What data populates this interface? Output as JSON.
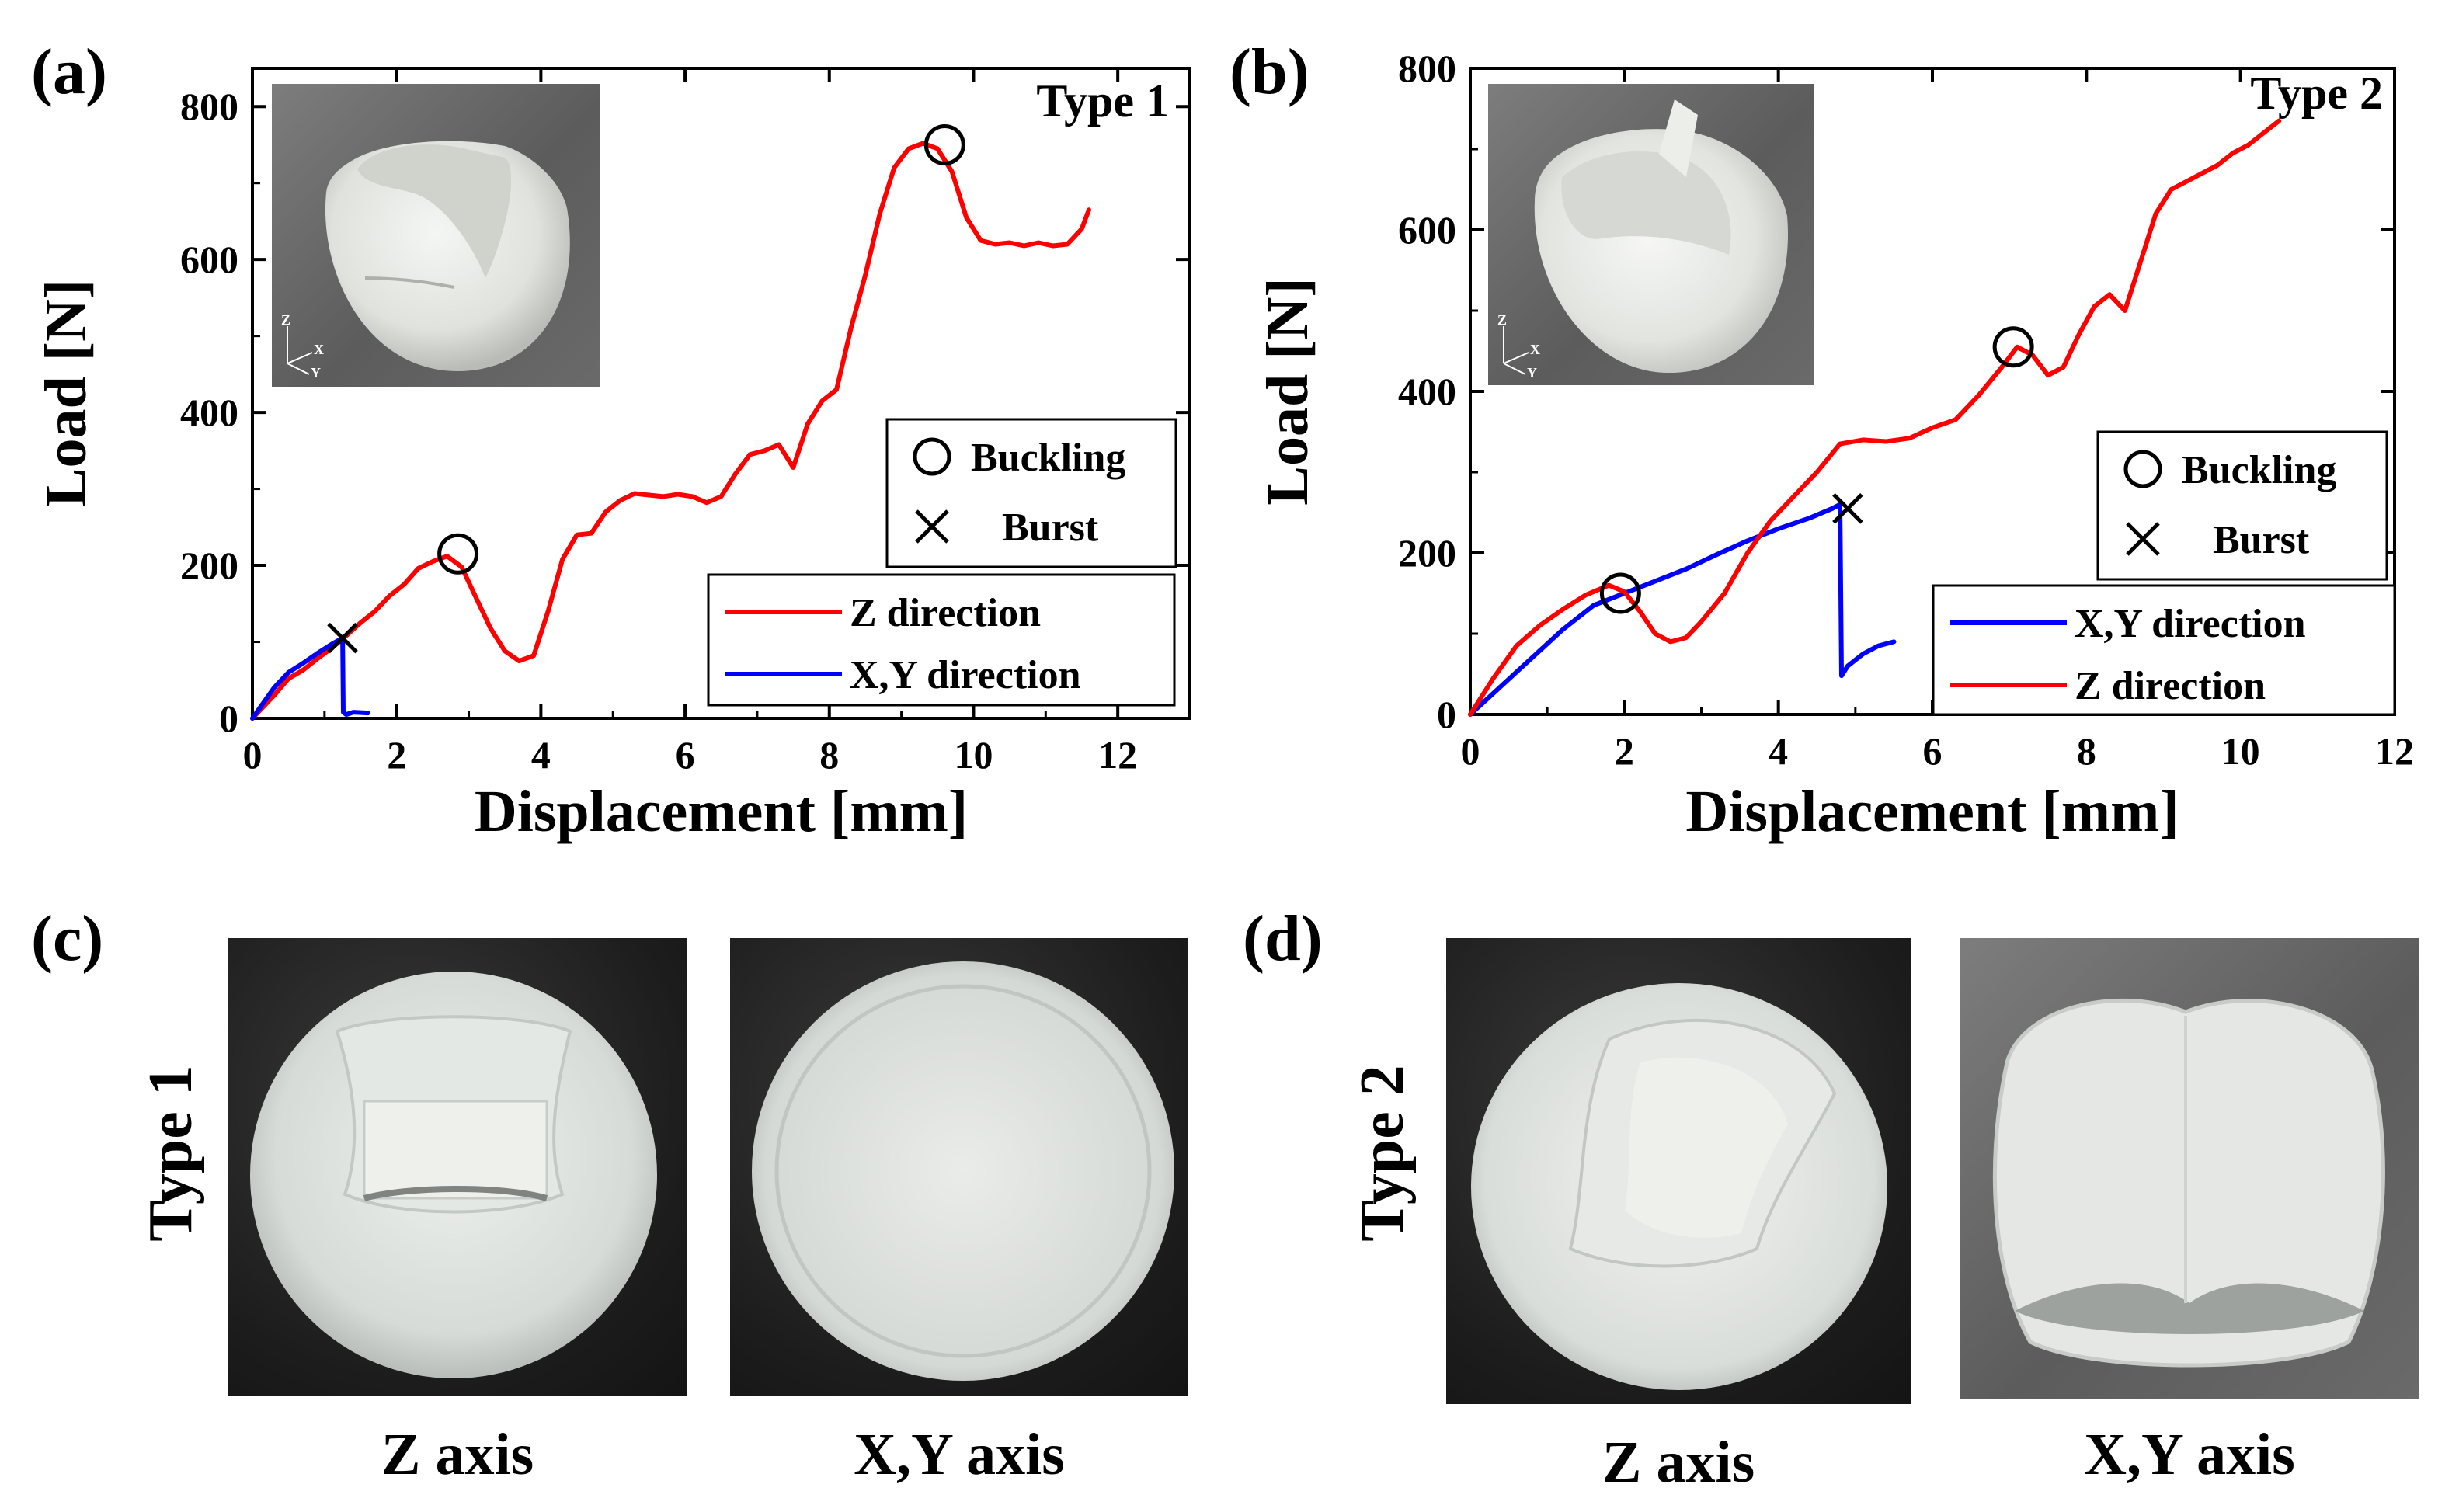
{
  "chart_data": [
    {
      "panel": "(a)",
      "type": "line",
      "title": "Type 1",
      "xlabel": "Displacement [mm]",
      "ylabel": "Load [N]",
      "xlim": [
        0,
        13
      ],
      "ylim": [
        0,
        850
      ],
      "xticks": [
        0,
        2,
        4,
        6,
        8,
        10,
        12
      ],
      "yticks": [
        0,
        200,
        400,
        600,
        800
      ],
      "series": [
        {
          "name": "Z direction",
          "color": "#ff0000",
          "x": [
            0,
            0.3,
            0.5,
            0.7,
            0.9,
            1.1,
            1.3,
            1.5,
            1.7,
            1.9,
            2.1,
            2.3,
            2.5,
            2.7,
            2.9,
            3.1,
            3.3,
            3.5,
            3.7,
            3.9,
            4.1,
            4.3,
            4.5,
            4.7,
            4.9,
            5.1,
            5.3,
            5.5,
            5.7,
            5.9,
            6.1,
            6.3,
            6.5,
            6.7,
            6.9,
            7.1,
            7.3,
            7.5,
            7.7,
            7.9,
            8.1,
            8.3,
            8.5,
            8.7,
            8.9,
            9.1,
            9.3,
            9.5,
            9.7,
            9.9,
            10.1,
            10.3,
            10.5,
            10.7,
            10.9,
            11.1,
            11.3,
            11.5,
            11.6
          ],
          "y": [
            0,
            30,
            52,
            63,
            78,
            92,
            108,
            125,
            140,
            160,
            175,
            196,
            205,
            212,
            198,
            158,
            118,
            88,
            75,
            82,
            140,
            208,
            240,
            242,
            270,
            285,
            294,
            292,
            290,
            293,
            290,
            282,
            290,
            320,
            345,
            350,
            358,
            328,
            385,
            415,
            430,
            510,
            580,
            660,
            720,
            745,
            752,
            745,
            715,
            655,
            625,
            620,
            622,
            618,
            622,
            618,
            620,
            640,
            665
          ]
        },
        {
          "name": "X,Y direction",
          "color": "#0000ff",
          "x": [
            0,
            0.3,
            0.5,
            0.7,
            0.9,
            1.1,
            1.25,
            1.26,
            1.3,
            1.4,
            1.6
          ],
          "y": [
            0,
            40,
            60,
            72,
            85,
            97,
            105,
            8,
            5,
            8,
            7
          ]
        }
      ],
      "annotations": {
        "buckling": [
          [
            2.85,
            215
          ],
          [
            9.6,
            750
          ]
        ],
        "burst": [
          [
            1.25,
            105
          ]
        ]
      },
      "legend": [
        {
          "key": "buckling",
          "label": "Buckling"
        },
        {
          "key": "burst",
          "label": "Burst"
        },
        {
          "key": "z",
          "label": "Z direction"
        },
        {
          "key": "xy",
          "label": "X,Y direction"
        }
      ],
      "inset_photo": "white 3D-printed hemispherical shell (Type 1) with axis triad",
      "axis_triad": {
        "labels": [
          "Z",
          "X",
          "Y"
        ]
      }
    },
    {
      "panel": "(b)",
      "type": "line",
      "title": "Type 2",
      "xlabel": "Displacement [mm]",
      "ylabel": "Load [N]",
      "xlim": [
        0,
        12
      ],
      "ylim": [
        0,
        800
      ],
      "xticks": [
        0,
        2,
        4,
        6,
        8,
        10,
        12
      ],
      "yticks": [
        0,
        200,
        400,
        600,
        800
      ],
      "series": [
        {
          "name": "X,Y direction",
          "color": "#0000ff",
          "x": [
            0,
            0.4,
            0.8,
            1.2,
            1.6,
            2.0,
            2.4,
            2.8,
            3.2,
            3.6,
            4.0,
            4.4,
            4.7,
            4.8,
            4.82,
            4.9,
            5.1,
            5.3,
            5.5
          ],
          "y": [
            0,
            35,
            70,
            105,
            135,
            150,
            165,
            180,
            198,
            215,
            230,
            243,
            255,
            260,
            48,
            60,
            75,
            85,
            90
          ]
        },
        {
          "name": "Z direction",
          "color": "#ff0000",
          "x": [
            0,
            0.3,
            0.6,
            0.9,
            1.2,
            1.5,
            1.8,
            2.0,
            2.2,
            2.4,
            2.6,
            2.8,
            3.0,
            3.3,
            3.6,
            3.9,
            4.2,
            4.5,
            4.8,
            5.1,
            5.4,
            5.7,
            6.0,
            6.3,
            6.6,
            6.9,
            7.1,
            7.3,
            7.5,
            7.7,
            7.9,
            8.1,
            8.3,
            8.5,
            8.7,
            8.9,
            9.1,
            9.3,
            9.5,
            9.7,
            9.9,
            10.1,
            10.3,
            10.5
          ],
          "y": [
            0,
            45,
            85,
            110,
            130,
            148,
            160,
            152,
            128,
            100,
            90,
            95,
            115,
            150,
            200,
            240,
            270,
            300,
            335,
            340,
            338,
            342,
            355,
            365,
            395,
            430,
            455,
            445,
            420,
            430,
            470,
            505,
            520,
            500,
            560,
            620,
            650,
            660,
            670,
            680,
            695,
            705,
            720,
            735
          ]
        }
      ],
      "annotations": {
        "buckling": [
          [
            1.95,
            150
          ],
          [
            7.05,
            455
          ]
        ],
        "burst": [
          [
            4.9,
            255
          ]
        ]
      },
      "legend": [
        {
          "key": "buckling",
          "label": "Buckling"
        },
        {
          "key": "burst",
          "label": "Burst"
        },
        {
          "key": "xy",
          "label": "X,Y direction"
        },
        {
          "key": "z",
          "label": "Z direction"
        }
      ],
      "inset_photo": "white 3D-printed hemispherical shell (Type 2) with axis triad",
      "axis_triad": {
        "labels": [
          "Z",
          "X",
          "Y"
        ]
      }
    }
  ],
  "photos": {
    "c": {
      "letter": "(c)",
      "row_label": "Type 1",
      "captions": [
        "Z axis",
        "X,Y axis"
      ]
    },
    "d": {
      "letter": "(d)",
      "row_label": "Type 2",
      "captions": [
        "Z axis",
        "X,Y axis"
      ]
    }
  },
  "colors": {
    "z_line": "#ff0000",
    "xy_line": "#0000ff",
    "axis": "#000000",
    "shell": "#e8ebe6"
  }
}
